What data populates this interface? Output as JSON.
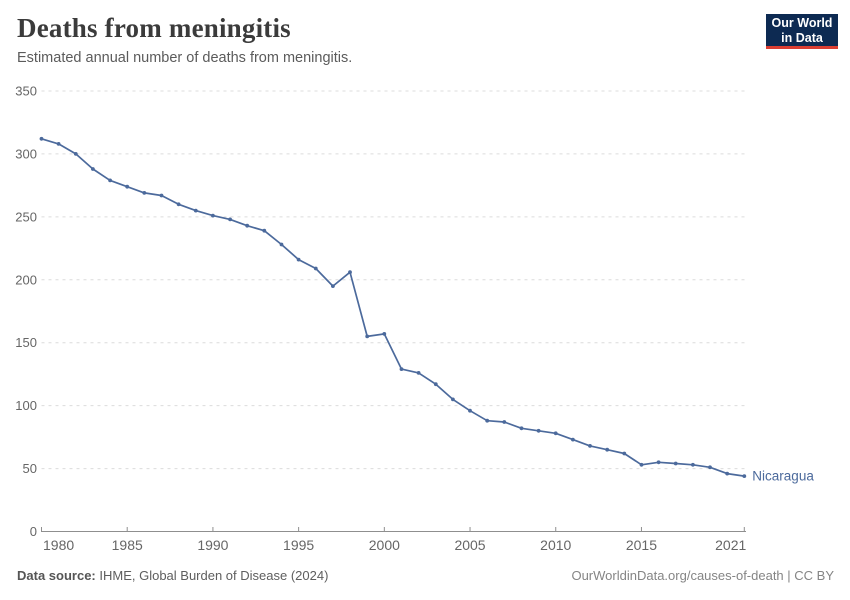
{
  "header": {
    "title": "Deaths from meningitis",
    "subtitle": "Estimated annual number of deaths from meningitis.",
    "logo_line1": "Our World",
    "logo_line2": "in Data"
  },
  "chart_data": {
    "type": "line",
    "title": "Deaths from meningitis",
    "subtitle": "Estimated annual number of deaths from meningitis.",
    "x": [
      1980,
      1981,
      1982,
      1983,
      1984,
      1985,
      1986,
      1987,
      1988,
      1989,
      1990,
      1991,
      1992,
      1993,
      1994,
      1995,
      1996,
      1997,
      1998,
      1999,
      2000,
      2001,
      2002,
      2003,
      2004,
      2005,
      2006,
      2007,
      2008,
      2009,
      2010,
      2011,
      2012,
      2013,
      2014,
      2015,
      2016,
      2017,
      2018,
      2019,
      2020,
      2021
    ],
    "series": [
      {
        "name": "Nicaragua",
        "values": [
          312,
          308,
          300,
          288,
          279,
          274,
          269,
          267,
          260,
          255,
          251,
          248,
          243,
          239,
          228,
          216,
          209,
          195,
          206,
          155,
          157,
          129,
          126,
          117,
          105,
          96,
          88,
          87,
          82,
          80,
          78,
          73,
          68,
          65,
          62,
          53,
          55,
          54,
          53,
          51,
          46,
          44
        ]
      }
    ],
    "xlabel": "",
    "ylabel": "",
    "ylim": [
      0,
      350
    ],
    "yticks": [
      0,
      50,
      100,
      150,
      200,
      250,
      300,
      350
    ],
    "xticks": [
      1980,
      1985,
      1990,
      1995,
      2000,
      2005,
      2010,
      2015,
      2021
    ],
    "grid": "horizontal-dashed",
    "legend_position": "end-of-line-label",
    "entity_label": "Nicaragua",
    "line_color": "#4C6A9C",
    "axis_color": "#8f8f8f",
    "grid_color": "#dcdcdc",
    "tick_label_color": "#666666"
  },
  "footer": {
    "source_label": "Data source:",
    "source_text": " IHME, Global Burden of Disease (2024)",
    "license_text": "OurWorldinData.org/causes-of-death | CC BY"
  }
}
